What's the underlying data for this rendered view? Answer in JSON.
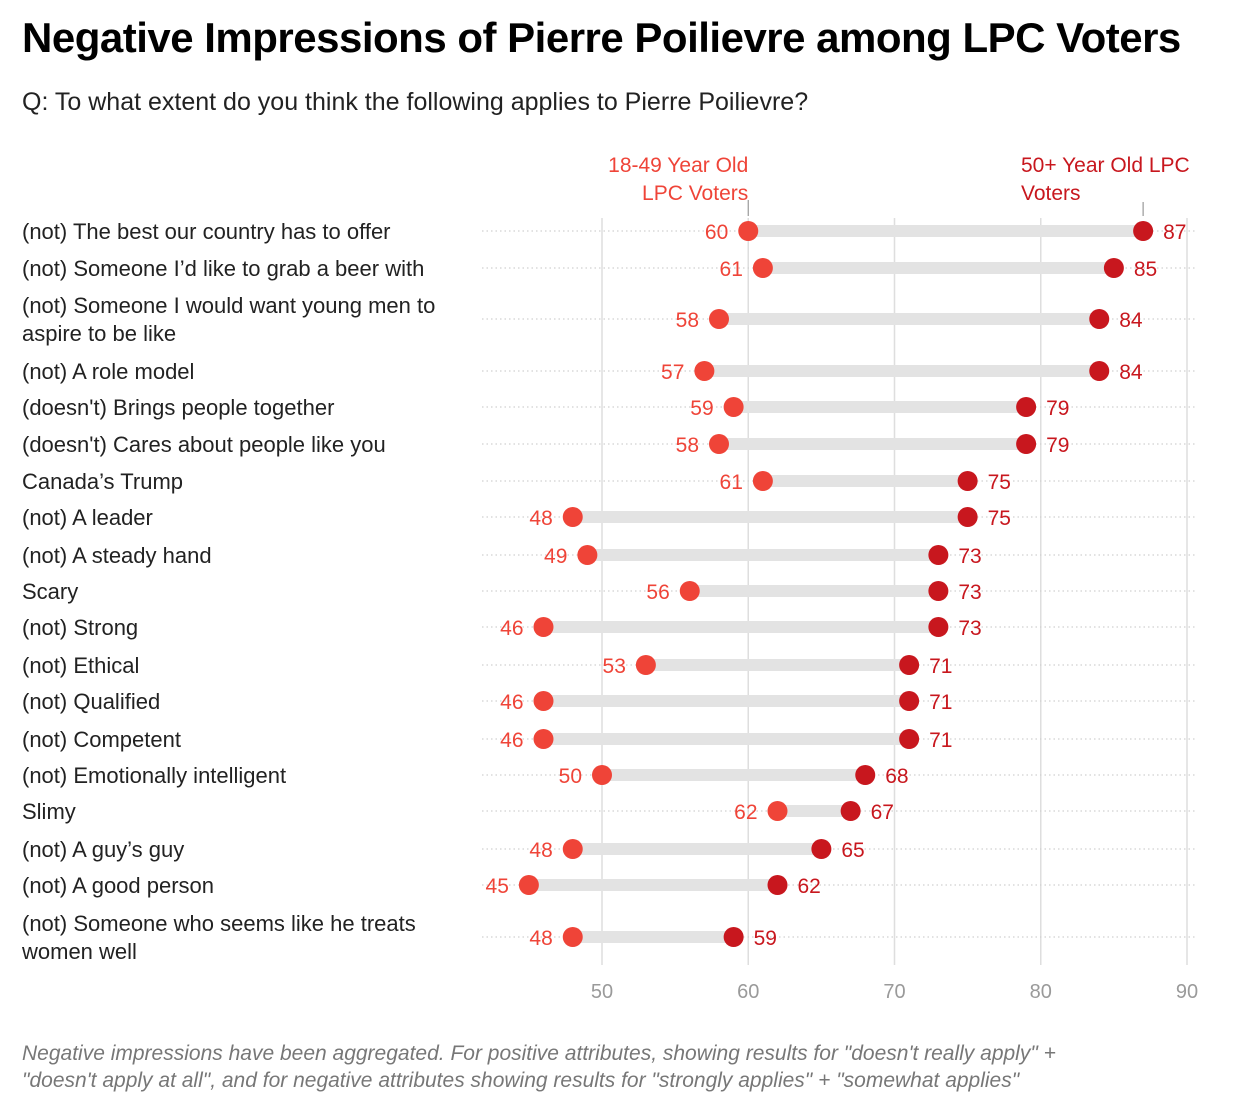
{
  "title": "Negative Impressions of Pierre Poilievre among LPC Voters",
  "subtitle": "Q: To what extent do you think the following applies to Pierre Poilievre?",
  "footnote": {
    "line1": "Negative impressions have been aggregated. For positive attributes, showing results for \"doesn't really apply\" +",
    "line2": "\"doesn't apply at all\", and for negative attributes showing results for \"strongly applies\" + \"somewhat applies\""
  },
  "colors": {
    "young": "#ef4438",
    "old": "#c8171e",
    "bar": "#e3e3e3",
    "grid": "#dedede"
  },
  "chart_data": {
    "type": "dumbbell",
    "xlim": [
      45,
      90
    ],
    "xticks": [
      50,
      60,
      70,
      80,
      90
    ],
    "legend": {
      "young_line1": "18-49 Year Old",
      "young_line2": "LPC Voters",
      "old_line1": "50+ Year Old LPC",
      "old_line2": "Voters"
    },
    "series": [
      {
        "name": "18-49 Year Old LPC Voters",
        "key": "young"
      },
      {
        "name": "50+ Year Old LPC Voters",
        "key": "old"
      }
    ],
    "rows": [
      {
        "label": [
          "(not) The best our country has to offer"
        ],
        "young": 60,
        "old": 87
      },
      {
        "label": [
          "(not) Someone I’d like to grab a beer with"
        ],
        "young": 61,
        "old": 85
      },
      {
        "label": [
          "(not) Someone I would want young men to",
          "aspire to be like"
        ],
        "young": 58,
        "old": 84
      },
      {
        "label": [
          "(not) A role model"
        ],
        "young": 57,
        "old": 84
      },
      {
        "label": [
          "(doesn't) Brings people together"
        ],
        "young": 59,
        "old": 79
      },
      {
        "label": [
          "(doesn't) Cares about people like you"
        ],
        "young": 58,
        "old": 79
      },
      {
        "label": [
          "Canada’s Trump"
        ],
        "young": 61,
        "old": 75
      },
      {
        "label": [
          "(not) A leader"
        ],
        "young": 48,
        "old": 75
      },
      {
        "label": [
          "(not) A steady hand"
        ],
        "young": 49,
        "old": 73
      },
      {
        "label": [
          "Scary"
        ],
        "young": 56,
        "old": 73
      },
      {
        "label": [
          "(not) Strong"
        ],
        "young": 46,
        "old": 73
      },
      {
        "label": [
          "(not) Ethical"
        ],
        "young": 53,
        "old": 71
      },
      {
        "label": [
          "(not) Qualified"
        ],
        "young": 46,
        "old": 71
      },
      {
        "label": [
          "(not) Competent"
        ],
        "young": 46,
        "old": 71
      },
      {
        "label": [
          "(not) Emotionally intelligent"
        ],
        "young": 50,
        "old": 68
      },
      {
        "label": [
          "Slimy"
        ],
        "young": 62,
        "old": 67
      },
      {
        "label": [
          "(not) A guy’s guy"
        ],
        "young": 48,
        "old": 65
      },
      {
        "label": [
          "(not) A good person"
        ],
        "young": 45,
        "old": 62
      },
      {
        "label": [
          "(not) Someone who seems like he treats",
          "women well"
        ],
        "young": 48,
        "old": 59
      }
    ]
  }
}
